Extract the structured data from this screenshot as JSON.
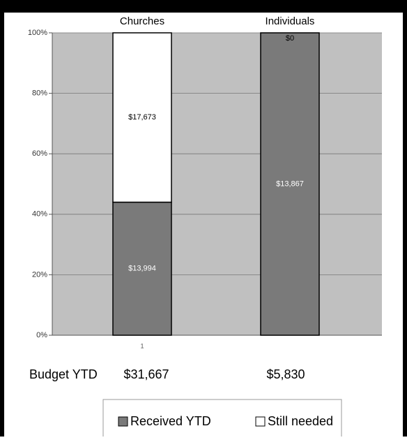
{
  "chart_data": {
    "type": "stacked_bar_percent",
    "categories": [
      "Churches",
      "Individuals"
    ],
    "xtick_labels": [
      "1",
      null
    ],
    "series": [
      {
        "name": "Received YTD",
        "color": "#7a7a7a",
        "values": [
          44,
          100
        ],
        "labels": [
          "$13,994",
          "$13,867"
        ]
      },
      {
        "name": "Still needed",
        "color": "#ffffff",
        "values": [
          56,
          0
        ],
        "labels": [
          "$17,673",
          "$0"
        ]
      }
    ],
    "ylim": [
      0,
      100
    ],
    "yticks": [
      {
        "value": 0,
        "label": "0%"
      },
      {
        "value": 20,
        "label": "20%"
      },
      {
        "value": 40,
        "label": "40%"
      },
      {
        "value": 60,
        "label": "60%"
      },
      {
        "value": 80,
        "label": "80%"
      },
      {
        "value": 100,
        "label": "100%"
      }
    ],
    "grid": true,
    "budget_label": "Budget YTD",
    "budget": [
      "$31,667",
      "$5,830"
    ]
  }
}
